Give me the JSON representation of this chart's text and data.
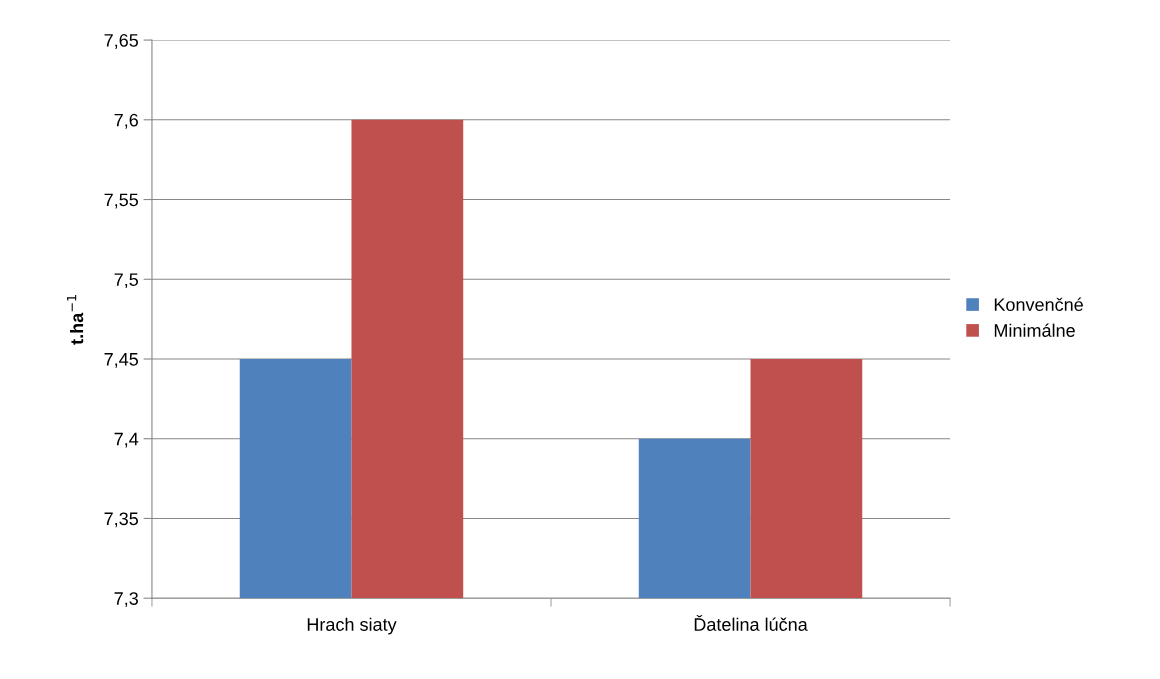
{
  "chart_data": {
    "type": "bar",
    "ylabel": "t.ha$^{−1}$",
    "categories": [
      "Hrach siaty",
      "Ďatelina lúčna"
    ],
    "series": [
      {
        "name": "Konvenčné",
        "color": "#4f81bd",
        "values": [
          7.45,
          7.4
        ]
      },
      {
        "name": "Minimálne",
        "color": "#c0504d",
        "values": [
          7.6,
          7.45
        ]
      }
    ],
    "ylim": [
      7.3,
      7.65
    ],
    "yticks": [
      {
        "value": 7.3,
        "label": "7,3"
      },
      {
        "value": 7.35,
        "label": "7,35"
      },
      {
        "value": 7.4,
        "label": "7,4"
      },
      {
        "value": 7.45,
        "label": "7,45"
      },
      {
        "value": 7.5,
        "label": "7,5"
      },
      {
        "value": 7.55,
        "label": "7,55"
      },
      {
        "value": 7.6,
        "label": "7,6"
      },
      {
        "value": 7.65,
        "label": "7,65"
      }
    ],
    "grid": "y",
    "legend": "right"
  }
}
